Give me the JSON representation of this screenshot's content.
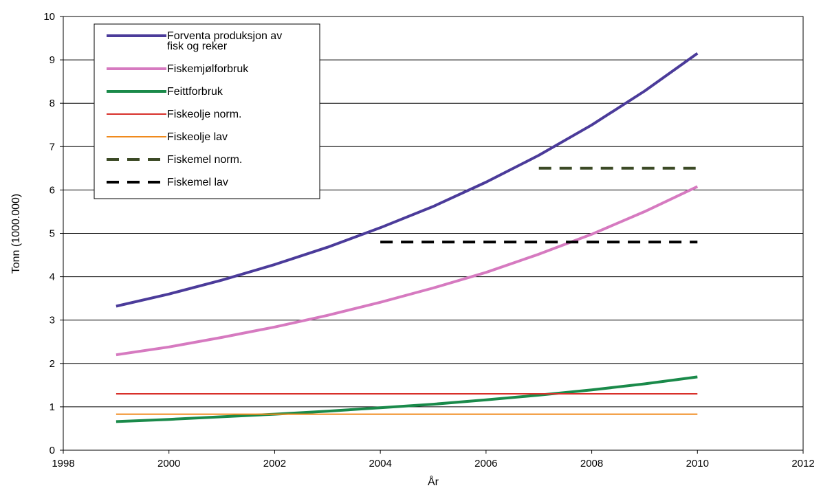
{
  "chart_data": {
    "type": "line",
    "title": "",
    "xlabel": "År",
    "ylabel": "Tonn (1000.000)",
    "xlim": [
      1998,
      2012
    ],
    "ylim": [
      0,
      10
    ],
    "xticks": [
      1998,
      2000,
      2002,
      2004,
      2006,
      2008,
      2010,
      2012
    ],
    "yticks": [
      0,
      1,
      2,
      3,
      4,
      5,
      6,
      7,
      8,
      9,
      10
    ],
    "grid": "horizontal",
    "legend_position": "top-left",
    "series": [
      {
        "name": "Forventa produksjon av fisk og reker",
        "color": "#4b3b9a",
        "style": "solid-thick",
        "x": [
          1999,
          2000,
          2001,
          2002,
          2003,
          2004,
          2005,
          2006,
          2007,
          2008,
          2009,
          2010
        ],
        "y": [
          3.32,
          3.6,
          3.92,
          4.28,
          4.68,
          5.13,
          5.62,
          6.18,
          6.8,
          7.5,
          8.28,
          9.15
        ]
      },
      {
        "name": "Fiskemjølforbruk",
        "color": "#d67ac0",
        "style": "solid-thick",
        "x": [
          1999,
          2000,
          2001,
          2002,
          2003,
          2004,
          2005,
          2006,
          2007,
          2008,
          2009,
          2010
        ],
        "y": [
          2.2,
          2.38,
          2.6,
          2.84,
          3.11,
          3.41,
          3.74,
          4.1,
          4.52,
          4.98,
          5.5,
          6.08
        ]
      },
      {
        "name": "Feittforbruk",
        "color": "#1a8a4a",
        "style": "solid-thick",
        "x": [
          1999,
          2000,
          2001,
          2002,
          2003,
          2004,
          2005,
          2006,
          2007,
          2008,
          2009,
          2010
        ],
        "y": [
          0.66,
          0.71,
          0.77,
          0.83,
          0.9,
          0.98,
          1.06,
          1.16,
          1.27,
          1.39,
          1.53,
          1.69
        ]
      },
      {
        "name": "Fiskeolje norm.",
        "color": "#d8302a",
        "style": "solid-thin",
        "x": [
          1999,
          2010
        ],
        "y": [
          1.3,
          1.3
        ]
      },
      {
        "name": "Fiskeolje lav",
        "color": "#f08a1c",
        "style": "solid-thin",
        "x": [
          1999,
          2010
        ],
        "y": [
          0.83,
          0.83
        ]
      },
      {
        "name": "Fiskemel norm.",
        "color": "#3c4a26",
        "style": "dashed",
        "x": [
          2007,
          2010
        ],
        "y": [
          6.5,
          6.5
        ]
      },
      {
        "name": "Fiskemel lav",
        "color": "#000000",
        "style": "dashed",
        "x": [
          2004,
          2010
        ],
        "y": [
          4.8,
          4.8
        ]
      }
    ],
    "legend_lines": [
      [
        "Forventa produksjon av",
        "fisk og reker"
      ],
      [
        "Fiskemjølforbruk"
      ],
      [
        "Feittforbruk"
      ],
      [
        "Fiskeolje norm."
      ],
      [
        "Fiskeolje lav"
      ],
      [
        "Fiskemel norm."
      ],
      [
        "Fiskemel lav"
      ]
    ]
  }
}
